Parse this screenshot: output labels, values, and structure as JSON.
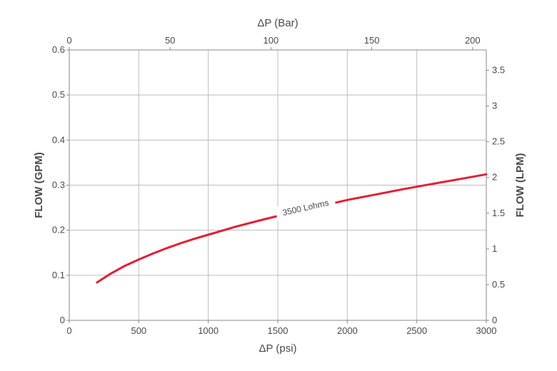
{
  "chart_data": {
    "type": "line",
    "title": "",
    "xlabel": "ΔP (psi)",
    "x2label": "ΔP (Bar)",
    "ylabel": "FLOW (GPM)",
    "y2label": "FLOW (LPM)",
    "xlim": [
      0,
      3000
    ],
    "x2lim": [
      0,
      206.8
    ],
    "ylim": [
      0,
      0.6
    ],
    "y2lim": [
      0,
      3.785
    ],
    "xticks": [
      0,
      500,
      1000,
      1500,
      2000,
      2500,
      3000
    ],
    "xtick_labels": [
      "0",
      "500",
      "1000",
      "1500",
      "2000",
      "2500",
      "3000"
    ],
    "x2ticks": [
      0,
      50,
      100,
      150,
      200
    ],
    "x2tick_labels": [
      "0",
      "50",
      "100",
      "150",
      "200"
    ],
    "yticks": [
      0,
      0.1,
      0.2,
      0.3,
      0.4,
      0.5,
      0.6
    ],
    "ytick_labels": [
      "0",
      "0.1",
      "0.2",
      "0.3",
      "0.4",
      "0.5",
      "0.6"
    ],
    "y2ticks": [
      0,
      0.5,
      1,
      1.5,
      2,
      2.5,
      3,
      3.5
    ],
    "y2tick_labels": [
      "0",
      "0.5",
      "1",
      "1.5",
      "2",
      "2.5",
      "3",
      "3.5"
    ],
    "grid": true,
    "series": [
      {
        "name": "3500 Lohms",
        "color": "#e31e35",
        "x": [
          200,
          300,
          400,
          500,
          600,
          700,
          800,
          900,
          1000,
          1200,
          1400,
          1600,
          1800,
          2000,
          2200,
          2400,
          2600,
          2800,
          3000
        ],
        "y": [
          0.084,
          0.104,
          0.121,
          0.135,
          0.148,
          0.16,
          0.171,
          0.181,
          0.19,
          0.208,
          0.224,
          0.239,
          0.253,
          0.267,
          0.279,
          0.291,
          0.302,
          0.313,
          0.324
        ]
      }
    ],
    "annotations": [
      {
        "text": "3500 Lohms",
        "x": 1900,
        "y": 0.262
      }
    ]
  }
}
